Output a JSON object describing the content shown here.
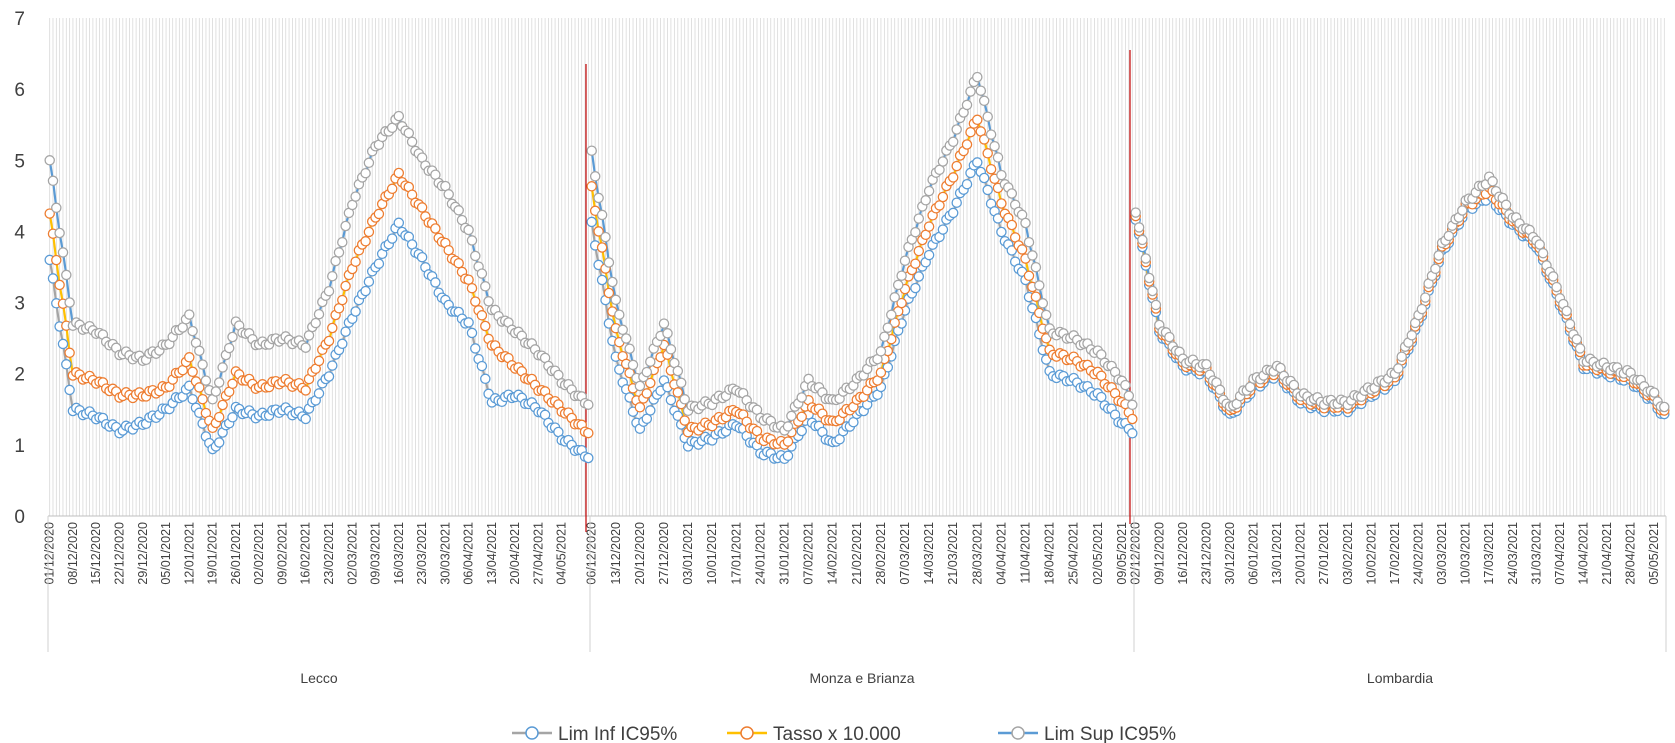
{
  "chart_data": {
    "type": "line",
    "title": "",
    "xlabel": "",
    "ylabel": "",
    "ylim": [
      0,
      7
    ],
    "yticks": [
      0,
      1,
      2,
      3,
      4,
      5,
      6,
      7
    ],
    "grid": "vertical gridlines",
    "legend_position": "bottom",
    "groups": [
      {
        "name": "Lecco",
        "start_date": "01/12/2020",
        "n_days": 163,
        "tick_labels": [
          "01/12/2020",
          "08/12/2020",
          "15/12/2020",
          "22/12/2020",
          "29/12/2020",
          "05/01/2021",
          "12/01/2021",
          "19/01/2021",
          "26/01/2021",
          "02/02/2021",
          "09/02/2021",
          "16/02/2021",
          "23/02/2021",
          "02/03/2021",
          "09/03/2021",
          "16/03/2021",
          "23/03/2021",
          "30/03/2021",
          "06/04/2021",
          "13/04/2021",
          "20/04/2021",
          "27/04/2021",
          "04/05/2021"
        ],
        "anchors": {
          "lim_inf": [
            [
              0,
              3.6
            ],
            [
              7,
              1.5
            ],
            [
              14,
              1.4
            ],
            [
              21,
              1.2
            ],
            [
              28,
              1.3
            ],
            [
              35,
              1.5
            ],
            [
              42,
              1.8
            ],
            [
              49,
              0.9
            ],
            [
              56,
              1.5
            ],
            [
              63,
              1.4
            ],
            [
              70,
              1.5
            ],
            [
              77,
              1.4
            ],
            [
              84,
              2.0
            ],
            [
              91,
              2.8
            ],
            [
              98,
              3.5
            ],
            [
              105,
              4.1
            ],
            [
              112,
              3.6
            ],
            [
              119,
              3.0
            ],
            [
              126,
              2.7
            ],
            [
              133,
              1.6
            ],
            [
              140,
              1.7
            ],
            [
              147,
              1.5
            ],
            [
              154,
              1.1
            ],
            [
              161,
              0.85
            ]
          ],
          "tasso": [
            [
              0,
              4.25
            ],
            [
              7,
              2.0
            ],
            [
              14,
              1.9
            ],
            [
              21,
              1.7
            ],
            [
              28,
              1.7
            ],
            [
              35,
              1.8
            ],
            [
              42,
              2.2
            ],
            [
              49,
              1.2
            ],
            [
              56,
              2.0
            ],
            [
              63,
              1.8
            ],
            [
              70,
              1.9
            ],
            [
              77,
              1.8
            ],
            [
              84,
              2.5
            ],
            [
              91,
              3.5
            ],
            [
              98,
              4.2
            ],
            [
              105,
              4.8
            ],
            [
              112,
              4.3
            ],
            [
              119,
              3.8
            ],
            [
              126,
              3.3
            ],
            [
              133,
              2.4
            ],
            [
              140,
              2.1
            ],
            [
              147,
              1.8
            ],
            [
              154,
              1.5
            ],
            [
              161,
              1.2
            ]
          ],
          "lim_sup": [
            [
              0,
              5.0
            ],
            [
              7,
              2.7
            ],
            [
              14,
              2.6
            ],
            [
              21,
              2.3
            ],
            [
              28,
              2.2
            ],
            [
              35,
              2.4
            ],
            [
              42,
              2.8
            ],
            [
              49,
              1.6
            ],
            [
              56,
              2.7
            ],
            [
              63,
              2.4
            ],
            [
              70,
              2.5
            ],
            [
              77,
              2.4
            ],
            [
              84,
              3.2
            ],
            [
              91,
              4.4
            ],
            [
              98,
              5.2
            ],
            [
              105,
              5.6
            ],
            [
              112,
              5.0
            ],
            [
              119,
              4.6
            ],
            [
              126,
              4.0
            ],
            [
              133,
              2.9
            ],
            [
              140,
              2.6
            ],
            [
              147,
              2.3
            ],
            [
              154,
              1.9
            ],
            [
              161,
              1.6
            ]
          ]
        }
      },
      {
        "name": "Monza e Brianza",
        "start_date": "06/12/2020",
        "n_days": 158,
        "tick_labels": [
          "06/12/2020",
          "13/12/2020",
          "20/12/2020",
          "27/12/2020",
          "03/01/2021",
          "10/01/2021",
          "17/01/2021",
          "24/01/2021",
          "31/01/2021",
          "07/02/2021",
          "14/02/2021",
          "21/02/2021",
          "28/02/2021",
          "07/03/2021",
          "14/03/2021",
          "21/03/2021",
          "28/03/2021",
          "04/04/2021",
          "11/04/2021",
          "18/04/2021",
          "25/04/2021",
          "02/05/2021",
          "09/05/2021"
        ],
        "anchors": {
          "lim_inf": [
            [
              0,
              4.1
            ],
            [
              7,
              2.2
            ],
            [
              14,
              1.2
            ],
            [
              21,
              1.9
            ],
            [
              28,
              1.0
            ],
            [
              35,
              1.1
            ],
            [
              42,
              1.3
            ],
            [
              49,
              0.9
            ],
            [
              56,
              0.8
            ],
            [
              63,
              1.4
            ],
            [
              70,
              1.0
            ],
            [
              77,
              1.4
            ],
            [
              84,
              1.8
            ],
            [
              91,
              2.9
            ],
            [
              98,
              3.7
            ],
            [
              105,
              4.3
            ],
            [
              112,
              5.0
            ],
            [
              119,
              4.0
            ],
            [
              126,
              3.3
            ],
            [
              133,
              2.0
            ],
            [
              140,
              1.9
            ],
            [
              147,
              1.7
            ],
            [
              154,
              1.3
            ],
            [
              157,
              1.2
            ]
          ],
          "tasso": [
            [
              0,
              4.6
            ],
            [
              7,
              2.6
            ],
            [
              14,
              1.5
            ],
            [
              21,
              2.4
            ],
            [
              28,
              1.2
            ],
            [
              35,
              1.3
            ],
            [
              42,
              1.5
            ],
            [
              49,
              1.1
            ],
            [
              56,
              1.0
            ],
            [
              63,
              1.6
            ],
            [
              70,
              1.3
            ],
            [
              77,
              1.6
            ],
            [
              84,
              2.0
            ],
            [
              91,
              3.2
            ],
            [
              98,
              4.1
            ],
            [
              105,
              4.8
            ],
            [
              112,
              5.6
            ],
            [
              119,
              4.4
            ],
            [
              126,
              3.6
            ],
            [
              133,
              2.3
            ],
            [
              140,
              2.2
            ],
            [
              147,
              2.0
            ],
            [
              154,
              1.6
            ],
            [
              157,
              1.4
            ]
          ],
          "lim_sup": [
            [
              0,
              5.1
            ],
            [
              7,
              3.0
            ],
            [
              14,
              1.8
            ],
            [
              21,
              2.7
            ],
            [
              28,
              1.5
            ],
            [
              35,
              1.6
            ],
            [
              42,
              1.8
            ],
            [
              49,
              1.4
            ],
            [
              56,
              1.2
            ],
            [
              63,
              1.9
            ],
            [
              70,
              1.6
            ],
            [
              77,
              1.9
            ],
            [
              84,
              2.3
            ],
            [
              91,
              3.6
            ],
            [
              98,
              4.6
            ],
            [
              105,
              5.3
            ],
            [
              112,
              6.2
            ],
            [
              119,
              4.8
            ],
            [
              126,
              4.1
            ],
            [
              133,
              2.6
            ],
            [
              140,
              2.5
            ],
            [
              147,
              2.3
            ],
            [
              154,
              1.9
            ],
            [
              157,
              1.6
            ]
          ]
        }
      },
      {
        "name": "Lombardia",
        "start_date": "02/12/2020",
        "n_days": 158,
        "tick_labels": [
          "02/12/2020",
          "09/12/2020",
          "16/12/2020",
          "23/12/2020",
          "30/12/2020",
          "06/01/2021",
          "13/01/2021",
          "20/01/2021",
          "27/01/2021",
          "03/02/2021",
          "10/02/2021",
          "17/02/2021",
          "24/02/2021",
          "03/03/2021",
          "10/03/2021",
          "17/03/2021",
          "24/03/2021",
          "31/03/2021",
          "07/04/2021",
          "14/04/2021",
          "21/04/2021",
          "28/04/2021",
          "05/05/2021"
        ],
        "anchors": {
          "lim_inf": [
            [
              0,
              4.2
            ],
            [
              7,
              2.6
            ],
            [
              14,
              2.1
            ],
            [
              21,
              2.0
            ],
            [
              28,
              1.4
            ],
            [
              35,
              1.8
            ],
            [
              42,
              2.0
            ],
            [
              49,
              1.6
            ],
            [
              56,
              1.5
            ],
            [
              63,
              1.5
            ],
            [
              70,
              1.7
            ],
            [
              77,
              1.9
            ],
            [
              84,
              2.7
            ],
            [
              91,
              3.7
            ],
            [
              98,
              4.3
            ],
            [
              105,
              4.5
            ],
            [
              112,
              4.1
            ],
            [
              119,
              3.8
            ],
            [
              126,
              3.0
            ],
            [
              133,
              2.1
            ],
            [
              140,
              2.0
            ],
            [
              147,
              1.9
            ],
            [
              154,
              1.6
            ],
            [
              157,
              1.4
            ]
          ],
          "tasso": [
            [
              0,
              4.25
            ],
            [
              7,
              2.65
            ],
            [
              14,
              2.15
            ],
            [
              21,
              2.05
            ],
            [
              28,
              1.45
            ],
            [
              35,
              1.85
            ],
            [
              42,
              2.05
            ],
            [
              49,
              1.65
            ],
            [
              56,
              1.55
            ],
            [
              63,
              1.55
            ],
            [
              70,
              1.75
            ],
            [
              77,
              1.95
            ],
            [
              84,
              2.75
            ],
            [
              91,
              3.75
            ],
            [
              98,
              4.35
            ],
            [
              105,
              4.6
            ],
            [
              112,
              4.15
            ],
            [
              119,
              3.85
            ],
            [
              126,
              3.05
            ],
            [
              133,
              2.15
            ],
            [
              140,
              2.05
            ],
            [
              147,
              1.95
            ],
            [
              154,
              1.65
            ],
            [
              157,
              1.45
            ]
          ],
          "lim_sup": [
            [
              0,
              4.3
            ],
            [
              7,
              2.7
            ],
            [
              14,
              2.2
            ],
            [
              21,
              2.1
            ],
            [
              28,
              1.5
            ],
            [
              35,
              1.9
            ],
            [
              42,
              2.1
            ],
            [
              49,
              1.7
            ],
            [
              56,
              1.6
            ],
            [
              63,
              1.6
            ],
            [
              70,
              1.8
            ],
            [
              77,
              2.0
            ],
            [
              84,
              2.8
            ],
            [
              91,
              3.8
            ],
            [
              98,
              4.4
            ],
            [
              105,
              4.75
            ],
            [
              112,
              4.2
            ],
            [
              119,
              3.9
            ],
            [
              126,
              3.1
            ],
            [
              133,
              2.2
            ],
            [
              140,
              2.1
            ],
            [
              147,
              2.0
            ],
            [
              154,
              1.7
            ],
            [
              157,
              1.5
            ]
          ]
        }
      }
    ],
    "series": [
      {
        "key": "lim_inf",
        "name": "Lim Inf IC95%",
        "line_color": "#a5a5a5",
        "marker_edge": "#5b9bd5"
      },
      {
        "key": "tasso",
        "name": "Tasso x 10.000",
        "line_color": "#ffc000",
        "marker_edge": "#ed7d31"
      },
      {
        "key": "lim_sup",
        "name": "Lim Sup IC95%",
        "line_color": "#5b9bd5",
        "marker_edge": "#a5a5a5"
      }
    ],
    "divider_color": "#c00000",
    "grid_color": "#d9d9d9"
  }
}
